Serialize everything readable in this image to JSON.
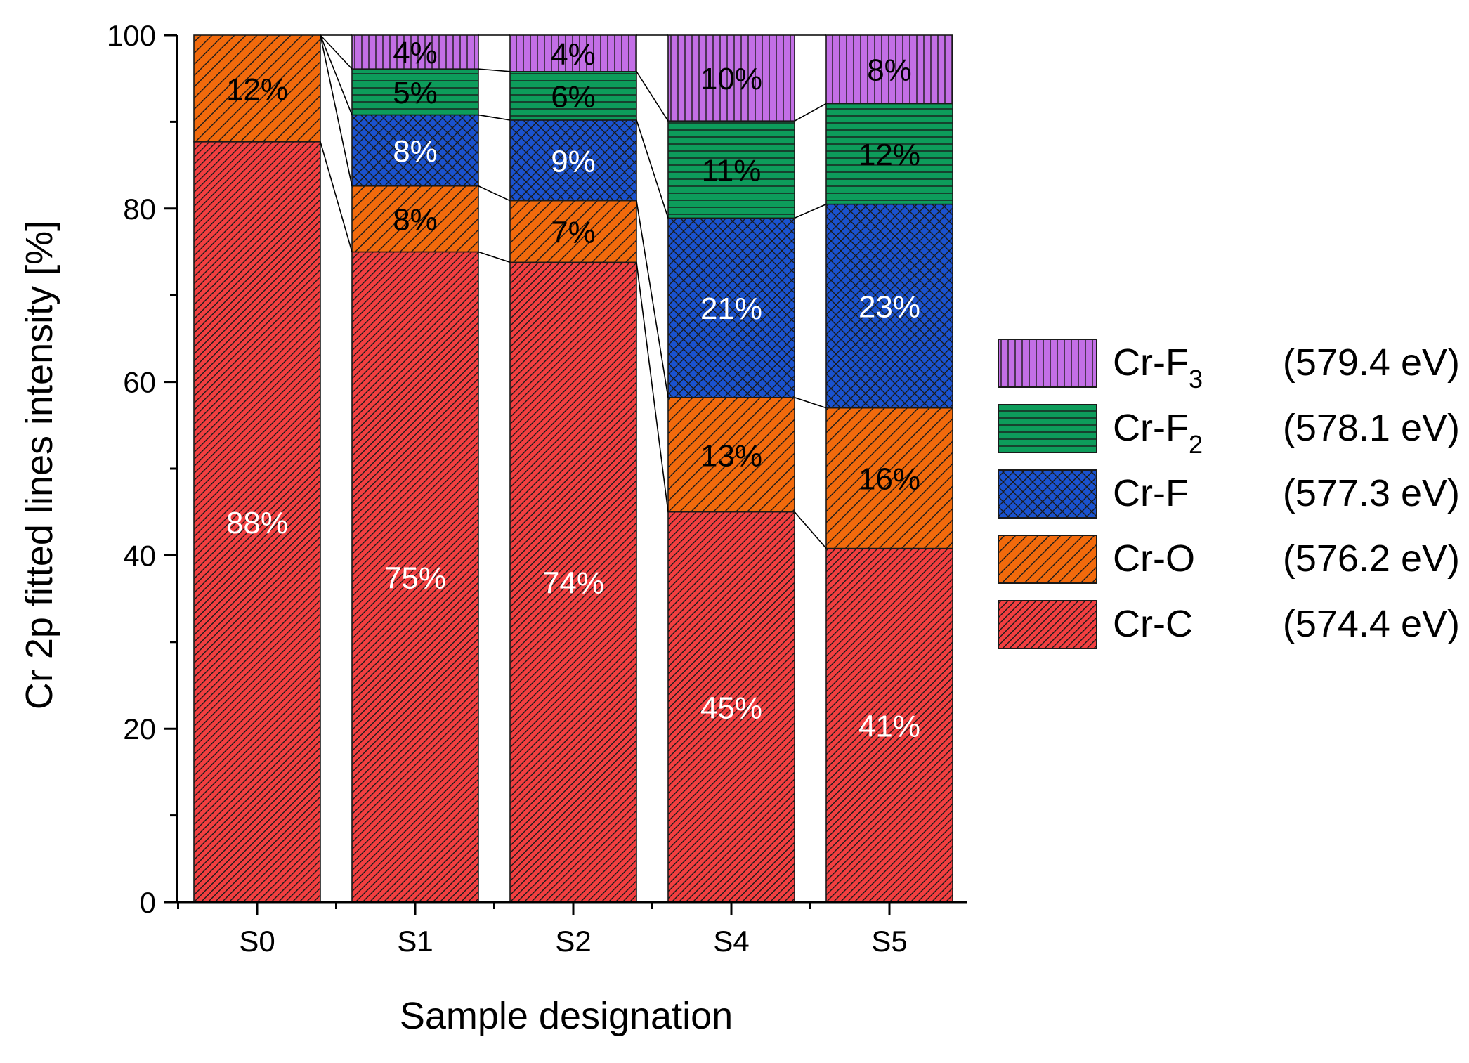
{
  "chart_data": {
    "type": "stacked-bar",
    "categories": [
      "S0",
      "S1",
      "S2",
      "S4",
      "S5"
    ],
    "xlabel": "Sample designation",
    "ylabel": "Cr 2p fitted lines intensity [%]",
    "ylim": [
      0,
      100
    ],
    "yticks": [
      0,
      20,
      40,
      60,
      80,
      100
    ],
    "legend_position": "right",
    "series": [
      {
        "key": "crc",
        "name": "Cr-C",
        "sub": "",
        "energy": "(574.4 eV)",
        "color": "#f23f40",
        "pattern": "diag-fine",
        "label_color": "#ffffff",
        "values": [
          87.7,
          75.0,
          73.8,
          45.0,
          40.8
        ],
        "labels": [
          "88%",
          "75%",
          "74%",
          "45%",
          "41%"
        ]
      },
      {
        "key": "cro",
        "name": "Cr-O",
        "sub": "",
        "energy": "(576.2 eV)",
        "color": "#f26a0c",
        "pattern": "diag-coarse",
        "label_color": "#000000",
        "values": [
          12.3,
          7.6,
          7.1,
          13.2,
          16.2
        ],
        "labels": [
          "12%",
          "8%",
          "7%",
          "13%",
          "16%"
        ]
      },
      {
        "key": "crf",
        "name": "Cr-F",
        "sub": "",
        "energy": "(577.3 eV)",
        "color": "#1a52cf",
        "pattern": "crosshatch",
        "label_color": "#ffffff",
        "values": [
          0,
          8.2,
          9.3,
          20.7,
          23.5
        ],
        "labels": [
          "",
          "8%",
          "9%",
          "21%",
          "23%"
        ]
      },
      {
        "key": "crf2",
        "name": "Cr-F",
        "sub": "2",
        "energy": "(578.1 eV)",
        "color": "#0d9c5b",
        "pattern": "horizontal",
        "label_color": "#000000",
        "values": [
          0,
          5.3,
          5.6,
          11.2,
          11.6
        ],
        "labels": [
          "",
          "5%",
          "6%",
          "11%",
          "12%"
        ]
      },
      {
        "key": "crf3",
        "name": "Cr-F",
        "sub": "3",
        "energy": "(579.4 eV)",
        "color": "#c36fe6",
        "pattern": "vertical",
        "label_color": "#000000",
        "values": [
          0,
          3.9,
          4.2,
          9.9,
          7.9
        ],
        "labels": [
          "",
          "4%",
          "4%",
          "10%",
          "8%"
        ]
      }
    ]
  }
}
